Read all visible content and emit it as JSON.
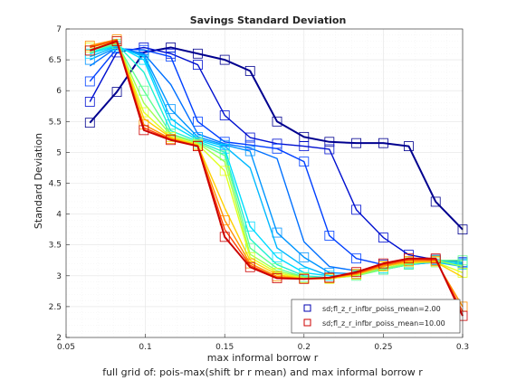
{
  "chart_data": {
    "type": "line",
    "title": "Savings Standard Deviation",
    "xlabel": "max informal borrow r",
    "ylabel": "Standard Deviation",
    "caption": "full grid of: pois-max(shift br r mean) and max informal borrow r",
    "xlim": [
      0.05,
      0.3
    ],
    "ylim": [
      2,
      7
    ],
    "xticks": [
      0.05,
      0.1,
      0.15,
      0.2,
      0.25,
      0.3
    ],
    "xtick_labels": [
      "0.05",
      "0.1",
      "0.15",
      "0.2",
      "0.25",
      "0.3"
    ],
    "yticks": [
      2,
      2.5,
      3,
      3.5,
      4,
      4.5,
      5,
      5.5,
      6,
      6.5,
      7
    ],
    "ytick_labels": [
      "2",
      "2.5",
      "3",
      "3.5",
      "4",
      "4.5",
      "5",
      "5.5",
      "6",
      "6.5",
      "7"
    ],
    "grid": true,
    "legend_position": "bottom-right",
    "legend": [
      {
        "label": "sd;fl_z_r_infbr_poiss_mean=2.00",
        "color": "#0000b0",
        "marker": "square"
      },
      {
        "label": "sd;fl_z_r_infbr_poiss_mean=10.00",
        "color": "#cc0000",
        "marker": "square"
      }
    ],
    "x": [
      0.065,
      0.082,
      0.099,
      0.116,
      0.133,
      0.15,
      0.166,
      0.183,
      0.2,
      0.216,
      0.233,
      0.25,
      0.266,
      0.283,
      0.3
    ],
    "series": [
      {
        "color": "#00008f",
        "marker": true,
        "values": [
          5.48,
          5.98,
          6.62,
          6.7,
          6.6,
          6.5,
          6.32,
          5.5,
          5.25,
          5.17,
          5.15,
          5.15,
          5.1,
          4.2,
          3.75
        ]
      },
      {
        "color": "#0010d0",
        "marker": true,
        "values": [
          5.82,
          6.62,
          6.7,
          6.6,
          6.42,
          5.6,
          5.24,
          5.14,
          5.1,
          5.05,
          4.07,
          3.62,
          3.34,
          3.26,
          3.22
        ]
      },
      {
        "color": "#0040ff",
        "marker": true,
        "values": [
          6.15,
          6.68,
          6.66,
          6.55,
          5.5,
          5.17,
          5.12,
          5.06,
          4.85,
          3.65,
          3.28,
          3.18,
          3.22,
          3.25,
          3.22
        ]
      },
      {
        "color": "#0070ff",
        "marker": false,
        "values": [
          6.4,
          6.7,
          6.6,
          6.1,
          5.3,
          5.14,
          5.07,
          4.9,
          3.55,
          3.15,
          3.08,
          3.12,
          3.18,
          3.22,
          3.18
        ]
      },
      {
        "color": "#0095ff",
        "marker": true,
        "values": [
          6.5,
          6.7,
          6.58,
          5.7,
          5.25,
          5.12,
          5.02,
          3.7,
          3.3,
          3.05,
          3.03,
          3.1,
          3.18,
          3.25,
          3.2
        ]
      },
      {
        "color": "#00b8ff",
        "marker": false,
        "values": [
          6.55,
          6.72,
          6.55,
          5.55,
          5.22,
          5.1,
          4.75,
          3.45,
          3.15,
          3.0,
          3.02,
          3.1,
          3.18,
          3.22,
          3.15
        ]
      },
      {
        "color": "#00dcff",
        "marker": true,
        "values": [
          6.6,
          6.73,
          6.5,
          5.45,
          5.2,
          5.06,
          3.8,
          3.3,
          3.05,
          3.0,
          3.02,
          3.12,
          3.2,
          3.22,
          3.18
        ]
      },
      {
        "color": "#20f0d0",
        "marker": false,
        "values": [
          6.62,
          6.75,
          6.3,
          5.35,
          5.18,
          5.0,
          3.6,
          3.18,
          3.0,
          2.97,
          3.01,
          3.1,
          3.2,
          3.22,
          3.22
        ]
      },
      {
        "color": "#60ff90",
        "marker": true,
        "values": [
          6.65,
          6.76,
          6.0,
          5.3,
          5.16,
          4.95,
          3.45,
          3.12,
          2.98,
          2.96,
          3.0,
          3.1,
          3.18,
          3.25,
          3.25
        ]
      },
      {
        "color": "#a0ff50",
        "marker": false,
        "values": [
          6.67,
          6.78,
          5.8,
          5.28,
          5.15,
          4.85,
          3.35,
          3.08,
          2.97,
          2.96,
          3.0,
          3.12,
          3.2,
          3.25,
          3.15
        ]
      },
      {
        "color": "#e0ff20",
        "marker": true,
        "values": [
          6.7,
          6.8,
          5.65,
          5.25,
          5.13,
          4.7,
          3.3,
          3.05,
          2.96,
          2.95,
          3.02,
          3.15,
          3.22,
          3.22,
          3.05
        ]
      },
      {
        "color": "#ffd000",
        "marker": false,
        "values": [
          6.72,
          6.82,
          5.55,
          5.24,
          5.12,
          4.1,
          3.25,
          3.02,
          2.95,
          2.95,
          3.02,
          3.15,
          3.22,
          3.22,
          2.98
        ]
      },
      {
        "color": "#ff9000",
        "marker": true,
        "values": [
          6.73,
          6.83,
          5.45,
          5.22,
          5.11,
          3.9,
          3.2,
          2.99,
          2.95,
          2.96,
          3.03,
          3.16,
          3.24,
          3.24,
          2.5
        ]
      },
      {
        "color": "#ff4000",
        "marker": false,
        "values": [
          6.7,
          6.82,
          5.4,
          5.21,
          5.1,
          3.75,
          3.17,
          2.97,
          2.95,
          2.97,
          3.04,
          3.18,
          3.26,
          3.26,
          2.42
        ]
      },
      {
        "color": "#cc0000",
        "marker": true,
        "values": [
          6.65,
          6.8,
          5.36,
          5.2,
          5.1,
          3.63,
          3.14,
          2.96,
          2.95,
          2.97,
          3.06,
          3.2,
          3.28,
          3.28,
          2.35
        ]
      }
    ]
  }
}
